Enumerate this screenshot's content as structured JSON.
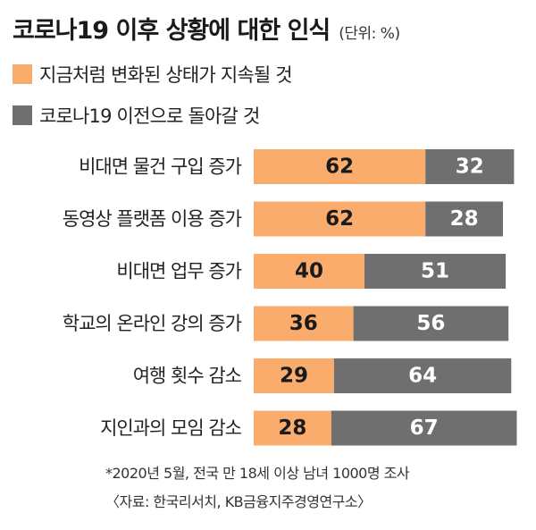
{
  "title": "코로나19 이후 상황에 대한 인식",
  "unit": "(단위: %)",
  "colors": {
    "series1": "#f9ac6c",
    "series2": "#6f6f6f"
  },
  "chart_data": {
    "type": "bar",
    "orientation": "horizontal",
    "stacked": true,
    "title": "코로나19 이후 상황에 대한 인식",
    "categories": [
      "비대면 물건 구입 증가",
      "동영상 플랫폼 이용 증가",
      "비대면 업무 증가",
      "학교의 온라인 강의 증가",
      "여행 횟수 감소",
      "지인과의 모임 감소"
    ],
    "series": [
      {
        "name": "지금처럼 변화된 상태가 지속될 것",
        "values": [
          62,
          62,
          40,
          36,
          29,
          28
        ]
      },
      {
        "name": "코로나19 이전으로 돌아갈 것",
        "values": [
          32,
          28,
          51,
          56,
          64,
          67
        ]
      }
    ],
    "legend_position": "top-left",
    "grid": false
  },
  "footnote": "*2020년 5월, 전국 만 18세 이상 남녀 1000명 조사",
  "source": "〈자료: 한국리서치, KB금융지주경영연구소〉"
}
